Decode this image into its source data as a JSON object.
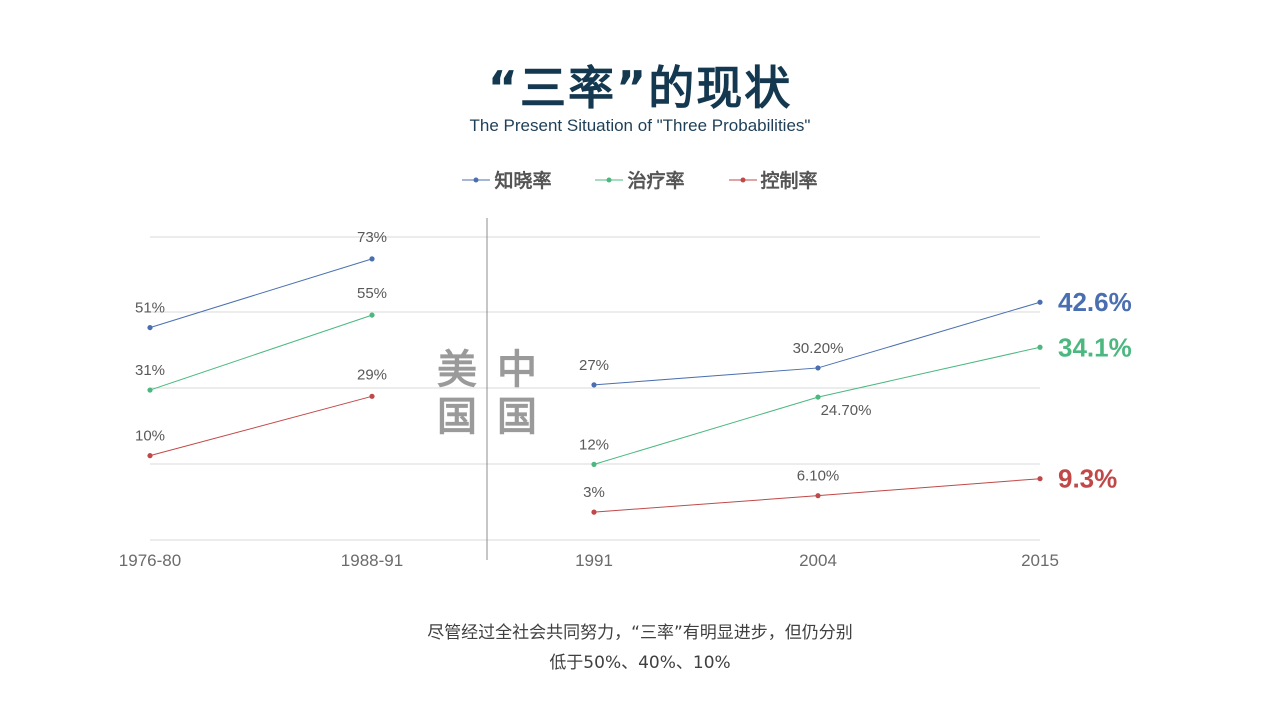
{
  "header": {
    "title": "“三率”的现状",
    "subtitle": "The Present Situation of \"Three Probabilities\""
  },
  "regions": {
    "left": "美国",
    "right": "中国"
  },
  "colors": {
    "awareness": "#4a6fb0",
    "treatment": "#4cb880",
    "control": "#c04848",
    "grid": "#d9d9d9",
    "axis_text": "#6b6b6b",
    "title": "#14384f"
  },
  "chart_data": [
    {
      "type": "line",
      "region": "美国",
      "categories": [
        "1976-80",
        "1988-91"
      ],
      "ylim": [
        -17,
        80
      ],
      "grid": true,
      "legend_position": "top-center",
      "series": [
        {
          "name": "知晓率",
          "values": [
            51,
            73
          ],
          "labels": [
            "51%",
            "73%"
          ]
        },
        {
          "name": "治疗率",
          "values": [
            31,
            55
          ],
          "labels": [
            "31%",
            "55%"
          ]
        },
        {
          "name": "控制率",
          "values": [
            10,
            29
          ],
          "labels": [
            "10%",
            "29%"
          ]
        }
      ]
    },
    {
      "type": "line",
      "region": "中国",
      "categories": [
        "1991",
        "2004",
        "2015"
      ],
      "ylim": [
        0,
        80
      ],
      "grid": true,
      "series": [
        {
          "name": "知晓率",
          "values": [
            27,
            30.2,
            42.6
          ],
          "labels": [
            "27%",
            "30.20%",
            "42.6%"
          ]
        },
        {
          "name": "治疗率",
          "values": [
            12,
            24.7,
            34.1
          ],
          "labels": [
            "12%",
            "24.70%",
            "34.1%"
          ]
        },
        {
          "name": "控制率",
          "values": [
            3,
            6.1,
            9.3
          ],
          "labels": [
            "3%",
            "6.10%",
            "9.3%"
          ]
        }
      ]
    }
  ],
  "caption": {
    "line1": "尽管经过全社会共同努力，“三率”有明显进步，但仍分别",
    "line2": "低于50%、40%、10%"
  }
}
